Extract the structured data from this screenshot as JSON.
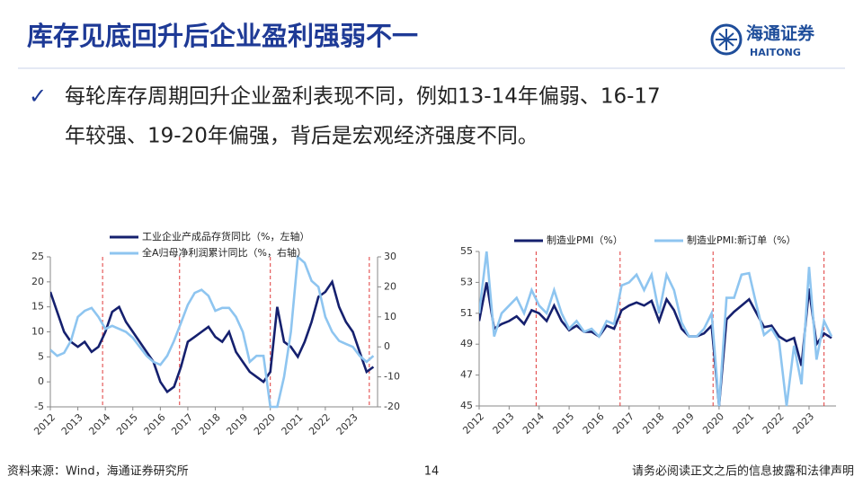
{
  "header": {
    "title": "库存见底回升后企业盈利强弱不一",
    "logo_cn": "海通证券",
    "logo_en": "HAITONG"
  },
  "bullet": {
    "lines": [
      "每轮库存周期回升企业盈利表现不同，例如13-14年偏弱、16-17",
      "年较强、19-20年偏强，背后是宏观经济强度不同。"
    ]
  },
  "chart_data": [
    {
      "type": "line",
      "x": [
        2012,
        2012.25,
        2012.5,
        2012.75,
        2013,
        2013.25,
        2013.5,
        2013.75,
        2014,
        2014.25,
        2014.5,
        2014.75,
        2015,
        2015.25,
        2015.5,
        2015.75,
        2016,
        2016.25,
        2016.5,
        2016.75,
        2017,
        2017.25,
        2017.5,
        2017.75,
        2018,
        2018.25,
        2018.5,
        2018.75,
        2019,
        2019.25,
        2019.5,
        2019.75,
        2020,
        2020.25,
        2020.5,
        2020.75,
        2021,
        2021.25,
        2021.5,
        2021.75,
        2022,
        2022.25,
        2022.5,
        2022.75,
        2023,
        2023.25,
        2023.5,
        2023.75
      ],
      "xlim": [
        2012,
        2023.9
      ],
      "xticks": [
        2012,
        2013,
        2014,
        2015,
        2016,
        2017,
        2018,
        2019,
        2020,
        2021,
        2022,
        2023
      ],
      "ylim": [
        -5,
        25
      ],
      "yticks": [
        -5,
        0,
        5,
        10,
        15,
        20,
        25
      ],
      "y2lim": [
        -20,
        30
      ],
      "y2ticks": [
        -20,
        -10,
        0,
        10,
        20,
        30
      ],
      "vlines": [
        2013.9,
        2016.7,
        2020.0,
        2023.6
      ],
      "vline_color": "#e03a3a",
      "legend": "top",
      "series": [
        {
          "name": "工业企业产成品存货同比（%，左轴）",
          "color": "#15206e",
          "values": [
            18,
            14,
            10,
            8,
            7,
            8,
            6,
            7,
            10,
            14,
            15,
            12,
            10,
            8,
            6,
            4,
            0,
            -2,
            -1,
            3,
            8,
            9,
            10,
            11,
            9,
            8,
            10,
            6,
            4,
            2,
            1,
            0,
            2,
            15,
            8,
            7,
            5,
            8,
            12,
            17,
            18,
            20,
            15,
            12,
            10,
            6,
            2,
            3
          ]
        },
        {
          "name": "全A归母净利润累计同比（%，右轴）",
          "color": "#8ec5f0",
          "axis": "y2",
          "values": [
            -1,
            -3,
            -2,
            2,
            10,
            12,
            13,
            10,
            6,
            7,
            6,
            5,
            3,
            0,
            -3,
            -5,
            -6,
            -3,
            2,
            8,
            14,
            18,
            19,
            17,
            12,
            13,
            13,
            10,
            5,
            -5,
            -3,
            -3,
            -20,
            -20,
            -10,
            5,
            30,
            28,
            22,
            20,
            10,
            5,
            2,
            1,
            0,
            -3,
            -5,
            -3
          ]
        }
      ]
    },
    {
      "type": "line",
      "x": [
        2012,
        2012.25,
        2012.5,
        2012.75,
        2013,
        2013.25,
        2013.5,
        2013.75,
        2014,
        2014.25,
        2014.5,
        2014.75,
        2015,
        2015.25,
        2015.5,
        2015.75,
        2016,
        2016.25,
        2016.5,
        2016.75,
        2017,
        2017.25,
        2017.5,
        2017.75,
        2018,
        2018.25,
        2018.5,
        2018.75,
        2019,
        2019.25,
        2019.5,
        2019.75,
        2020,
        2020.25,
        2020.5,
        2020.75,
        2021,
        2021.25,
        2021.5,
        2021.75,
        2022,
        2022.25,
        2022.5,
        2022.75,
        2023,
        2023.25,
        2023.5,
        2023.75
      ],
      "xlim": [
        2012,
        2023.9
      ],
      "xticks": [
        2012,
        2013,
        2014,
        2015,
        2016,
        2017,
        2018,
        2019,
        2020,
        2021,
        2022,
        2023
      ],
      "ylim": [
        45,
        55
      ],
      "yticks": [
        45,
        47,
        49,
        51,
        53,
        55
      ],
      "vlines": [
        2013.9,
        2016.7,
        2019.8,
        2023.5
      ],
      "vline_color": "#e03a3a",
      "legend": "top",
      "series": [
        {
          "name": "制造业PMI（%）",
          "color": "#15206e",
          "values": [
            50.5,
            53,
            50,
            50.3,
            50.5,
            50.8,
            50.3,
            51.2,
            51,
            50.5,
            51.5,
            50.5,
            49.9,
            50.2,
            49.8,
            49.8,
            49.5,
            50.2,
            50,
            51.2,
            51.5,
            51.7,
            51.5,
            51.8,
            50.5,
            51.9,
            51.2,
            50,
            49.5,
            49.5,
            49.7,
            50.2,
            45,
            50.6,
            51.1,
            51.5,
            51.9,
            51,
            50.1,
            50.2,
            49.5,
            49.2,
            49.4,
            47.6,
            52.6,
            49,
            49.7,
            49.4
          ]
        },
        {
          "name": "制造业PMI:新订单（%）",
          "color": "#8ec5f0",
          "values": [
            51,
            55,
            49.5,
            51,
            51.5,
            52,
            51,
            52.5,
            51.5,
            51,
            52.5,
            51,
            50,
            50.5,
            49.8,
            50,
            49.5,
            50.5,
            50.3,
            52.8,
            53,
            53.5,
            52.5,
            53.5,
            51,
            53.5,
            52.5,
            50.4,
            49.5,
            49.5,
            50,
            51,
            45,
            52,
            52,
            53.5,
            53.6,
            51.5,
            49.6,
            50,
            49.2,
            45,
            48.9,
            46.4,
            54,
            48,
            50.5,
            49.5
          ]
        }
      ]
    }
  ],
  "footer": {
    "source": "资料来源：Wind，海通证券研究所",
    "page": 14,
    "disclaimer": "请务必阅读正文之后的信息披露和法律声明"
  }
}
